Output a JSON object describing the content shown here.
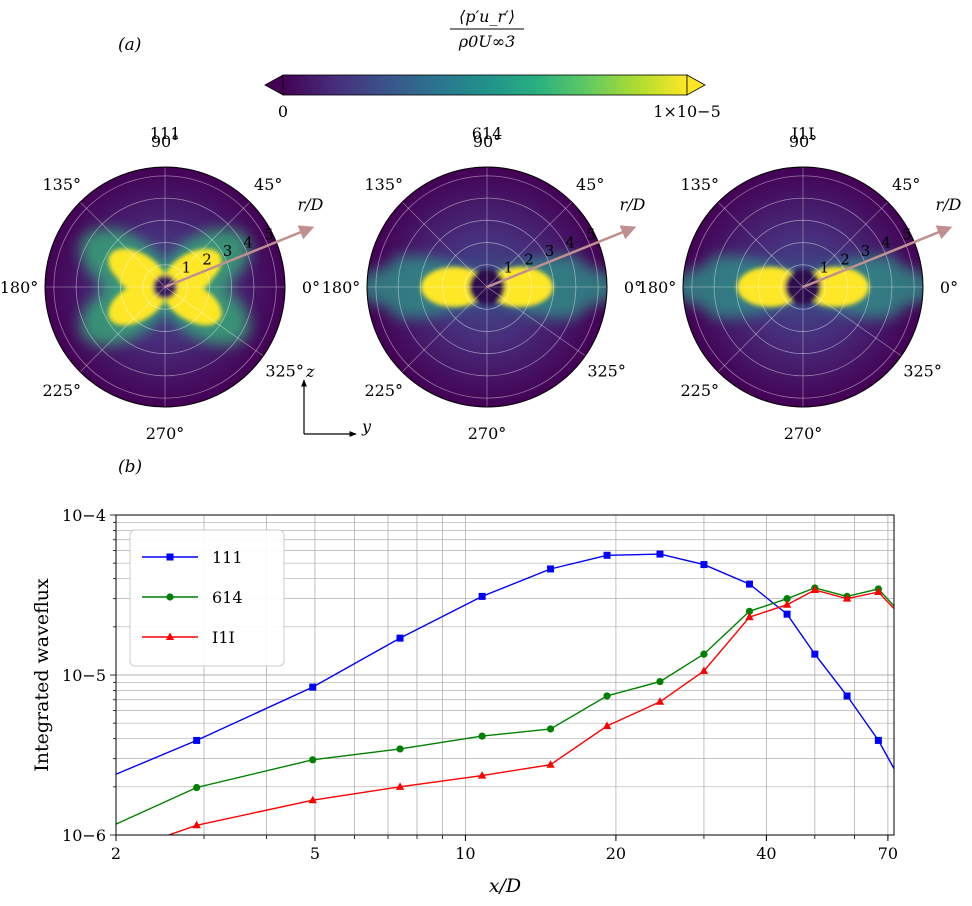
{
  "panel_a": {
    "label": "(a)",
    "colorbar": {
      "title_num": "⟨p′u_r′⟩",
      "title_den": "ρ0U∞3",
      "min_label": "0",
      "max_label": "1×10−5",
      "colormap": "viridis",
      "extend": "both",
      "colors": [
        "#440154",
        "#472c7a",
        "#3b528b",
        "#2c728e",
        "#21918c",
        "#28ae80",
        "#5ec962",
        "#addc30",
        "#fde725"
      ]
    },
    "axis_indicator": {
      "vertical": "z",
      "horizontal": "y"
    },
    "polar_plots": [
      {
        "title": "111",
        "pattern": "cross"
      },
      {
        "title": "614",
        "pattern": "horizontal"
      },
      {
        "title": "I1I",
        "pattern": "horizontal"
      }
    ],
    "angle_labels": [
      "0°",
      "45°",
      "90°",
      "135°",
      "180°",
      "225°",
      "270°",
      "325°"
    ],
    "radial_ticks": [
      "1",
      "2",
      "3",
      "4",
      "5"
    ],
    "radial_axis_label": "r/D"
  },
  "panel_b": {
    "label": "(b)"
  },
  "chart_data": {
    "type": "line",
    "title": "",
    "xlabel": "x/D",
    "ylabel": "Integrated waveflux",
    "xscale": "log",
    "yscale": "log",
    "xlim": [
      2,
      72
    ],
    "ylim": [
      1e-06,
      0.0001
    ],
    "xticks": [
      2,
      5,
      10,
      20,
      40,
      70
    ],
    "yticks": [
      1e-06,
      1e-05,
      0.0001
    ],
    "ytick_labels": [
      "10−6",
      "10−5",
      "10−4"
    ],
    "grid": true,
    "legend_position": "upper-left",
    "series": [
      {
        "name": "111",
        "color": "#0000ff",
        "marker": "square",
        "x": [
          2,
          2.9,
          4.95,
          7.4,
          10.8,
          14.8,
          19.2,
          24.5,
          30,
          37,
          44,
          50,
          58,
          67,
          72
        ],
        "y": [
          2.4e-06,
          3.9e-06,
          8.4e-06,
          1.7e-05,
          3.1e-05,
          4.6e-05,
          5.6e-05,
          5.7e-05,
          4.9e-05,
          3.7e-05,
          2.4e-05,
          1.35e-05,
          7.4e-06,
          3.9e-06,
          2.6e-06
        ]
      },
      {
        "name": "614",
        "color": "#008000",
        "marker": "circle",
        "x": [
          2,
          2.9,
          4.95,
          7.4,
          10.8,
          14.8,
          19.2,
          24.5,
          30,
          37,
          44,
          50,
          58,
          67,
          72
        ],
        "y": [
          1.17e-06,
          1.98e-06,
          2.95e-06,
          3.45e-06,
          4.15e-06,
          4.6e-06,
          7.4e-06,
          9.1e-06,
          1.35e-05,
          2.5e-05,
          3e-05,
          3.5e-05,
          3.1e-05,
          3.45e-05,
          2.7e-05
        ]
      },
      {
        "name": "I1I",
        "color": "#ff0000",
        "marker": "triangle",
        "x": [
          2.55,
          2.9,
          4.95,
          7.4,
          10.8,
          14.8,
          19.2,
          24.5,
          30,
          37,
          44,
          50,
          58,
          67,
          72
        ],
        "y": [
          1e-06,
          1.15e-06,
          1.65e-06,
          2e-06,
          2.35e-06,
          2.75e-06,
          4.8e-06,
          6.8e-06,
          1.06e-05,
          2.3e-05,
          2.75e-05,
          3.4e-05,
          3e-05,
          3.3e-05,
          2.6e-05
        ]
      }
    ]
  }
}
